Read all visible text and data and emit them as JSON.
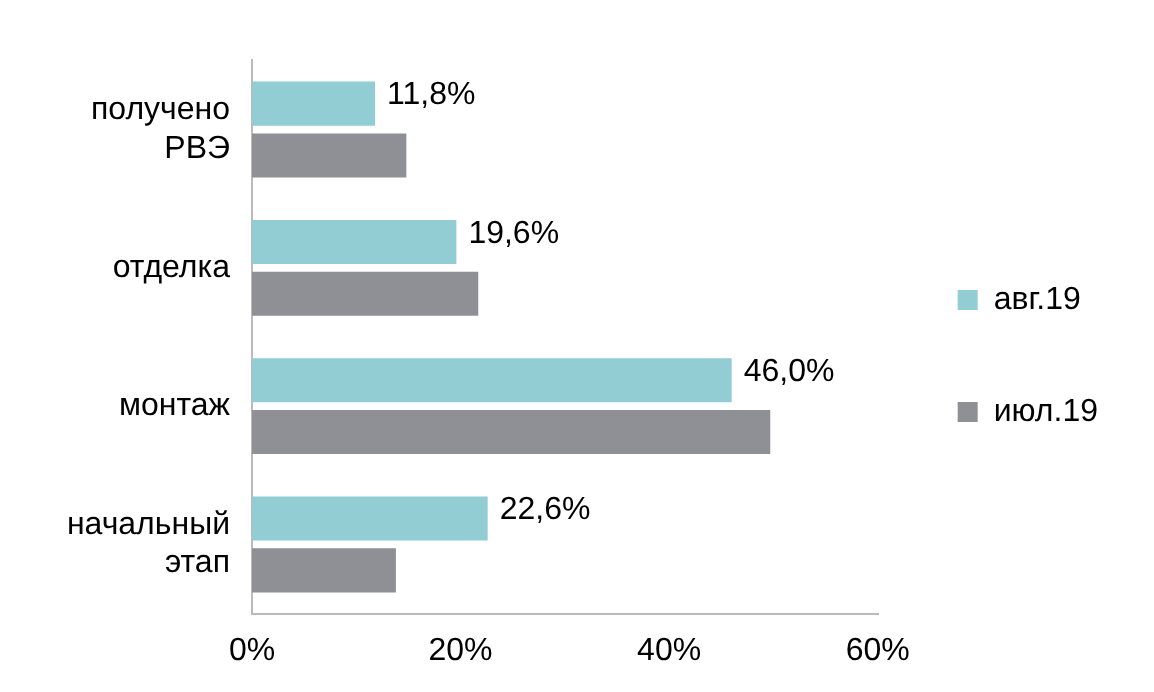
{
  "chart_data": {
    "type": "bar",
    "orientation": "horizontal",
    "categories": [
      "получено РВЭ",
      "отделка",
      "монтаж",
      "начальный этап"
    ],
    "series": [
      {
        "name": "авг.19",
        "color": "#92cdd4",
        "values": [
          11.8,
          19.6,
          46.0,
          22.6
        ],
        "value_labels": [
          "11,8%",
          "19,6%",
          "46,0%",
          "22,6%"
        ]
      },
      {
        "name": "июл.19",
        "color": "#8e9095",
        "values": [
          14.8,
          21.7,
          49.7,
          13.8
        ]
      }
    ],
    "xlim": [
      0,
      60
    ],
    "xticks": [
      {
        "value": 0,
        "label": "0%"
      },
      {
        "value": 20,
        "label": "20%"
      },
      {
        "value": 40,
        "label": "40%"
      },
      {
        "value": 60,
        "label": "60%"
      }
    ],
    "grid": false,
    "legend": "right"
  }
}
